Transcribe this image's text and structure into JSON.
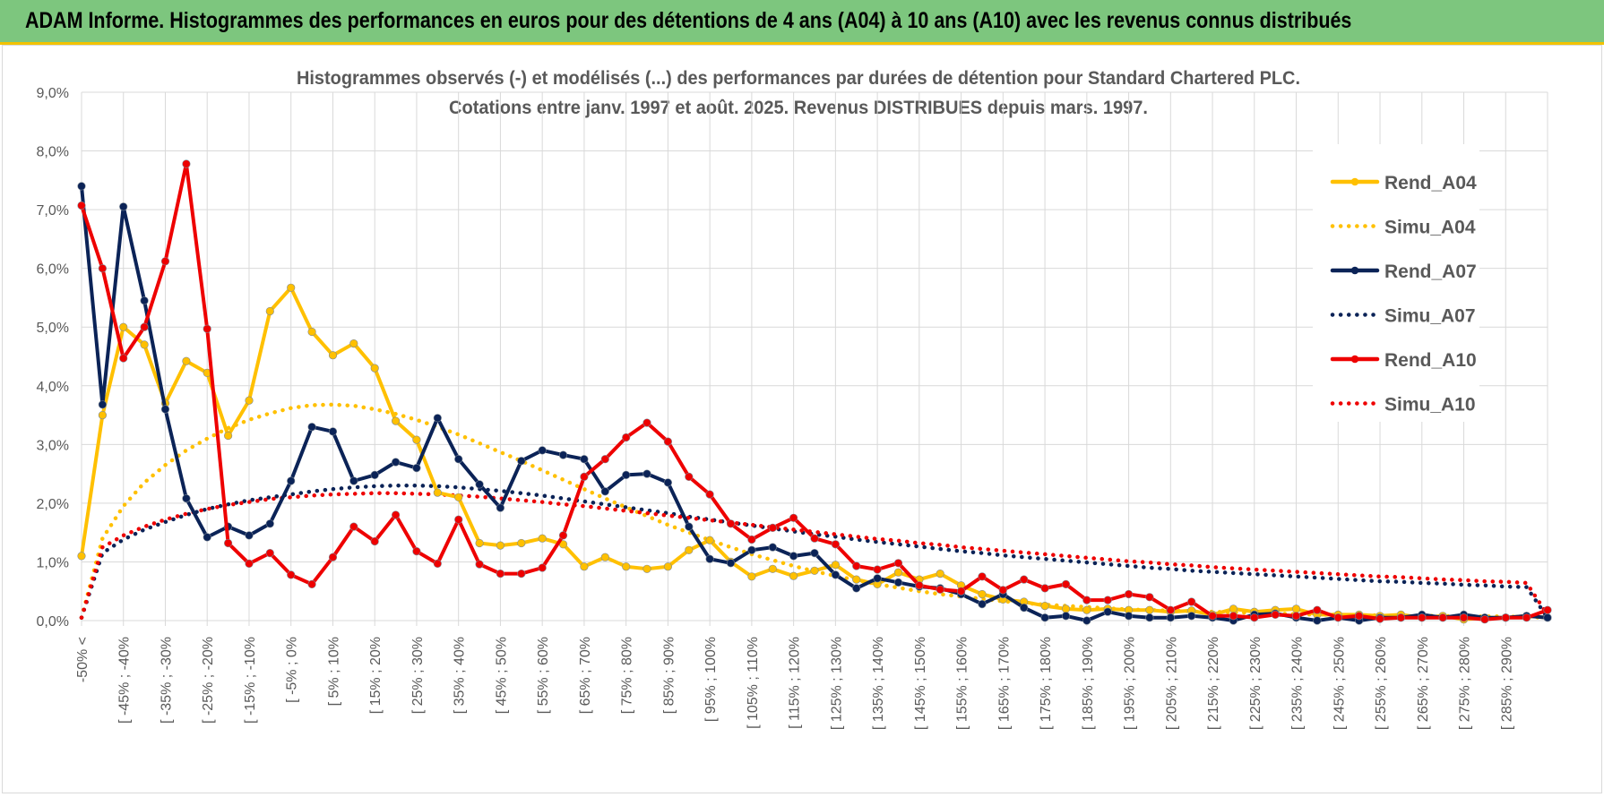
{
  "header": {
    "title": "ADAM Informe. Histogrammes des performances en euros pour des détentions de 4 ans (A04) à 10 ans (A10) avec les revenus connus distribués"
  },
  "colors": {
    "header_bg": "#7dc67e",
    "header_border": "#f2c200",
    "A04": "#ffc000",
    "A07": "#0b2357",
    "A10": "#ee0000",
    "grid": "#d9d9d9",
    "text": "#595959"
  },
  "chart_data": {
    "type": "line",
    "title_lines": [
      "Histogrammes observés (-) et modélisés (...) des performances par durées de détention pour Standard Chartered PLC.",
      "Cotations entre janv. 1997 et août. 2025. Revenus DISTRIBUES depuis mars. 1997."
    ],
    "y_ticks": [
      "0,0%",
      "1,0%",
      "2,0%",
      "3,0%",
      "4,0%",
      "5,0%",
      "6,0%",
      "7,0%",
      "8,0%",
      "9,0%"
    ],
    "ylim": [
      0,
      9
    ],
    "x_tick_labels": [
      "-50% <",
      "[ -45% ; -40%",
      "[ -35% ; -30%",
      "[ -25% ; -20%",
      "[ -15% ; -10%",
      "[ -5% ; 0%",
      "[ 5% ; 10%",
      "[ 15% ; 20%",
      "[ 25% ; 30%",
      "[ 35% ; 40%",
      "[ 45% ; 50%",
      "[ 55% ; 60%",
      "[ 65% ; 70%",
      "[ 75% ; 80%",
      "[ 85% ; 90%",
      "[ 95% ; 100%",
      "[ 105% ; 110%",
      "[ 115% ; 120%",
      "[ 125% ; 130%",
      "[ 135% ; 140%",
      "[ 145% ; 150%",
      "[ 155% ; 160%",
      "[ 165% ; 170%",
      "[ 175% ; 180%",
      "[ 185% ; 190%",
      "[ 195% ; 200%",
      "[ 205% ; 210%",
      "[ 215% ; 220%",
      "[ 225% ; 230%",
      "[ 235% ; 240%",
      "[ 245% ; 250%",
      "[ 255% ; 260%",
      "[ 265% ; 270%",
      "[ 275% ; 280%",
      "[ 285% ; 290%"
    ],
    "n_categories": 71,
    "legend_position": "right",
    "series": [
      {
        "name": "Rend_A04",
        "color": "#ffc000",
        "style": "solid",
        "markers": true,
        "values": [
          1.1,
          3.5,
          5.0,
          4.7,
          3.7,
          4.42,
          4.22,
          3.15,
          3.75,
          5.27,
          5.67,
          4.92,
          4.52,
          4.72,
          4.3,
          3.4,
          3.08,
          2.18,
          2.1,
          1.32,
          1.28,
          1.32,
          1.4,
          1.3,
          0.92,
          1.08,
          0.92,
          0.88,
          0.92,
          1.2,
          1.37,
          1.0,
          0.75,
          0.88,
          0.76,
          0.85,
          0.95,
          0.7,
          0.62,
          0.82,
          0.7,
          0.8,
          0.6,
          0.45,
          0.36,
          0.32,
          0.25,
          0.2,
          0.18,
          0.2,
          0.18,
          0.18,
          0.15,
          0.17,
          0.1,
          0.2,
          0.15,
          0.18,
          0.2,
          0.1,
          0.1,
          0.1,
          0.08,
          0.1,
          0.05,
          0.08,
          0.02,
          0.05,
          0.05,
          0.08,
          0.05
        ]
      },
      {
        "name": "Simu_A04",
        "color": "#ffc000",
        "style": "dotted",
        "markers": false,
        "values": [
          0.05,
          1.4,
          1.95,
          2.35,
          2.65,
          2.9,
          3.1,
          3.28,
          3.42,
          3.53,
          3.62,
          3.67,
          3.68,
          3.66,
          3.6,
          3.52,
          3.42,
          3.3,
          3.17,
          3.02,
          2.87,
          2.72,
          2.56,
          2.4,
          2.24,
          2.08,
          1.93,
          1.78,
          1.63,
          1.5,
          1.37,
          1.25,
          1.13,
          1.03,
          0.93,
          0.84,
          0.76,
          0.69,
          0.62,
          0.56,
          0.5,
          0.45,
          0.41,
          0.37,
          0.33,
          0.3,
          0.27,
          0.25,
          0.23,
          0.21,
          0.19,
          0.18,
          0.17,
          0.16,
          0.15,
          0.14,
          0.13,
          0.12,
          0.11,
          0.1,
          0.1,
          0.09,
          0.09,
          0.08,
          0.08,
          0.08,
          0.07,
          0.07,
          0.07,
          0.06,
          0.05
        ]
      },
      {
        "name": "Rend_A07",
        "color": "#0b2357",
        "style": "solid",
        "markers": true,
        "values": [
          7.4,
          3.68,
          7.05,
          5.45,
          3.6,
          2.08,
          1.42,
          1.6,
          1.45,
          1.65,
          2.38,
          3.3,
          3.22,
          2.38,
          2.48,
          2.7,
          2.6,
          3.45,
          2.75,
          2.32,
          1.92,
          2.72,
          2.9,
          2.82,
          2.75,
          2.2,
          2.48,
          2.5,
          2.35,
          1.6,
          1.05,
          0.98,
          1.2,
          1.25,
          1.1,
          1.15,
          0.78,
          0.55,
          0.72,
          0.65,
          0.58,
          0.55,
          0.45,
          0.28,
          0.45,
          0.22,
          0.05,
          0.08,
          0.0,
          0.15,
          0.08,
          0.05,
          0.05,
          0.08,
          0.05,
          0.0,
          0.1,
          0.12,
          0.05,
          0.0,
          0.05,
          0.0,
          0.05,
          0.05,
          0.1,
          0.05,
          0.1,
          0.05,
          0.05,
          0.08,
          0.05
        ]
      },
      {
        "name": "Simu_A07",
        "color": "#0b2357",
        "style": "dotted",
        "markers": false,
        "values": [
          0.05,
          1.15,
          1.38,
          1.55,
          1.68,
          1.8,
          1.9,
          1.98,
          2.05,
          2.1,
          2.15,
          2.2,
          2.24,
          2.27,
          2.29,
          2.3,
          2.3,
          2.29,
          2.27,
          2.24,
          2.21,
          2.17,
          2.13,
          2.08,
          2.03,
          1.98,
          1.93,
          1.88,
          1.83,
          1.77,
          1.72,
          1.67,
          1.62,
          1.57,
          1.52,
          1.47,
          1.43,
          1.38,
          1.34,
          1.3,
          1.26,
          1.22,
          1.18,
          1.15,
          1.11,
          1.08,
          1.05,
          1.02,
          0.99,
          0.96,
          0.93,
          0.9,
          0.88,
          0.85,
          0.83,
          0.81,
          0.79,
          0.77,
          0.75,
          0.73,
          0.71,
          0.69,
          0.67,
          0.66,
          0.64,
          0.63,
          0.61,
          0.6,
          0.58,
          0.57,
          0.05
        ]
      },
      {
        "name": "Rend_A10",
        "color": "#ee0000",
        "style": "solid",
        "markers": true,
        "values": [
          7.07,
          6.0,
          4.47,
          5.0,
          6.12,
          7.78,
          4.97,
          1.32,
          0.97,
          1.15,
          0.78,
          0.62,
          1.08,
          1.6,
          1.35,
          1.8,
          1.18,
          0.97,
          1.72,
          0.96,
          0.8,
          0.8,
          0.9,
          1.45,
          2.45,
          2.75,
          3.12,
          3.37,
          3.05,
          2.45,
          2.15,
          1.65,
          1.38,
          1.58,
          1.75,
          1.4,
          1.3,
          0.93,
          0.87,
          0.98,
          0.6,
          0.53,
          0.5,
          0.75,
          0.52,
          0.7,
          0.55,
          0.62,
          0.35,
          0.35,
          0.45,
          0.4,
          0.18,
          0.32,
          0.08,
          0.08,
          0.05,
          0.1,
          0.08,
          0.18,
          0.05,
          0.08,
          0.03,
          0.05,
          0.05,
          0.05,
          0.05,
          0.02,
          0.05,
          0.05,
          0.18
        ]
      },
      {
        "name": "Simu_A10",
        "color": "#ee0000",
        "style": "dotted",
        "markers": false,
        "values": [
          0.05,
          1.25,
          1.45,
          1.6,
          1.72,
          1.82,
          1.9,
          1.97,
          2.02,
          2.07,
          2.1,
          2.13,
          2.15,
          2.16,
          2.17,
          2.17,
          2.16,
          2.15,
          2.13,
          2.11,
          2.08,
          2.05,
          2.02,
          1.98,
          1.95,
          1.91,
          1.87,
          1.83,
          1.79,
          1.75,
          1.71,
          1.67,
          1.63,
          1.59,
          1.55,
          1.51,
          1.47,
          1.43,
          1.39,
          1.36,
          1.32,
          1.29,
          1.25,
          1.22,
          1.19,
          1.16,
          1.13,
          1.1,
          1.07,
          1.04,
          1.01,
          0.99,
          0.96,
          0.94,
          0.91,
          0.89,
          0.87,
          0.85,
          0.83,
          0.81,
          0.79,
          0.77,
          0.75,
          0.74,
          0.72,
          0.7,
          0.69,
          0.67,
          0.66,
          0.64,
          0.1
        ]
      }
    ]
  }
}
